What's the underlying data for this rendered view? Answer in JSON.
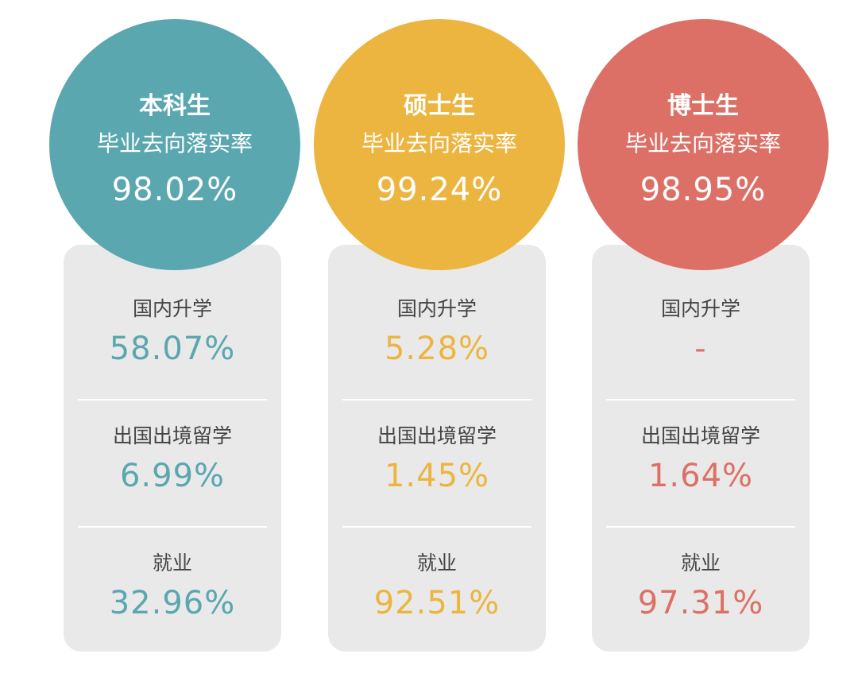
{
  "colors": {
    "undergrad": "#5aa7b0",
    "master": "#ecb540",
    "doctor": "#dd7066",
    "card_bg": "#e9e9e9",
    "label_text": "#444444"
  },
  "columns": [
    {
      "level": "本科生",
      "rate_label": "毕业去向落实率",
      "rate_value": "98.02%",
      "metrics": [
        {
          "label": "国内升学",
          "value": "58.07%"
        },
        {
          "label": "出国出境留学",
          "value": "6.99%"
        },
        {
          "label": "就业",
          "value": "32.96%"
        }
      ]
    },
    {
      "level": "硕士生",
      "rate_label": "毕业去向落实率",
      "rate_value": "99.24%",
      "metrics": [
        {
          "label": "国内升学",
          "value": "5.28%"
        },
        {
          "label": "出国出境留学",
          "value": "1.45%"
        },
        {
          "label": "就业",
          "value": "92.51%"
        }
      ]
    },
    {
      "level": "博士生",
      "rate_label": "毕业去向落实率",
      "rate_value": "98.95%",
      "metrics": [
        {
          "label": "国内升学",
          "value": "-"
        },
        {
          "label": "出国出境留学",
          "value": "1.64%"
        },
        {
          "label": "就业",
          "value": "97.31%"
        }
      ]
    }
  ]
}
